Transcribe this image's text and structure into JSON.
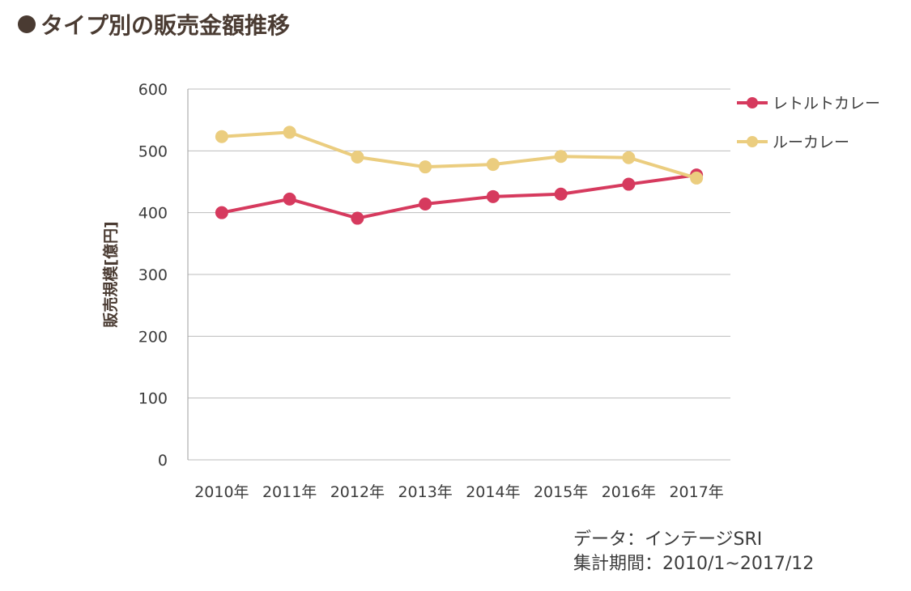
{
  "title": "タイプ別の販売金額推移",
  "source": {
    "line1": "データ：インテージSRI",
    "line2": "集計期間：2010/1~2017/12"
  },
  "chart_data": {
    "type": "line",
    "title": "タイプ別の販売金額推移",
    "xlabel": "",
    "ylabel": "販売規模[億円]",
    "categories": [
      "2010年",
      "2011年",
      "2012年",
      "2013年",
      "2014年",
      "2015年",
      "2016年",
      "2017年"
    ],
    "ylim": [
      0,
      600
    ],
    "yticks": [
      "0",
      "100",
      "200",
      "300",
      "400",
      "500",
      "600"
    ],
    "grid": true,
    "legend_position": "right",
    "series": [
      {
        "name": "レトルトカレー",
        "color": "#d63a5e",
        "values": [
          400,
          422,
          391,
          414,
          426,
          430,
          446,
          461
        ]
      },
      {
        "name": "ルーカレー",
        "color": "#ebcd7f",
        "values": [
          523,
          530,
          490,
          474,
          478,
          491,
          489,
          456
        ]
      }
    ]
  }
}
